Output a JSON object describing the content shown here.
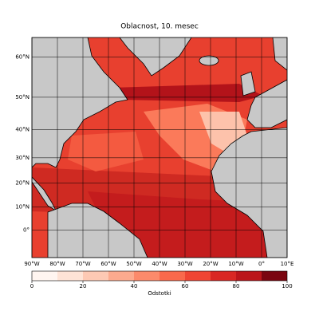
{
  "map": {
    "title": "Oblacnost, 10. mesec",
    "lonlim": [
      -90,
      10
    ],
    "latlim": [
      -12,
      64
    ],
    "lat_ticks": [
      {
        "value": 0,
        "label": "0°"
      },
      {
        "value": 10,
        "label": "10°N"
      },
      {
        "value": 20,
        "label": "20°N"
      },
      {
        "value": 30,
        "label": "30°N"
      },
      {
        "value": 40,
        "label": "40°N"
      },
      {
        "value": 50,
        "label": "50°N"
      },
      {
        "value": 60,
        "label": "60°N"
      }
    ],
    "lon_ticks": [
      {
        "value": -90,
        "label": "90°W"
      },
      {
        "value": -80,
        "label": "80°W"
      },
      {
        "value": -70,
        "label": "70°W"
      },
      {
        "value": -60,
        "label": "60°W"
      },
      {
        "value": -50,
        "label": "50°W"
      },
      {
        "value": -40,
        "label": "40°W"
      },
      {
        "value": -30,
        "label": "30°W"
      },
      {
        "value": -20,
        "label": "20°W"
      },
      {
        "value": -10,
        "label": "10°W"
      },
      {
        "value": 0,
        "label": "0°"
      },
      {
        "value": 10,
        "label": "10°E"
      }
    ]
  },
  "colorbar": {
    "label": "Odstotki",
    "lim": [
      0,
      100
    ],
    "ticks": [
      0,
      20,
      40,
      60,
      80,
      100
    ],
    "bins": [
      0,
      10,
      20,
      30,
      40,
      50,
      60,
      70,
      80,
      90,
      100
    ],
    "colors": [
      "#fff5f0",
      "#fee3d6",
      "#fdc9b4",
      "#fcaa8e",
      "#fc8a6b",
      "#f9694c",
      "#ef4533",
      "#d92723",
      "#bb151a",
      "#7a0510"
    ]
  }
}
